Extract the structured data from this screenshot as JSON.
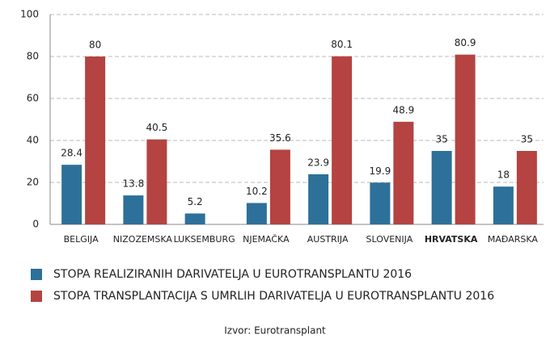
{
  "chart_data": {
    "type": "bar",
    "categories": [
      "BELGIJA",
      "NIZOZEMSKA",
      "LUKSEMBURG",
      "NJEMAČKA",
      "AUSTRIJA",
      "SLOVENIJA",
      "HRVATSKA",
      "MAĐARSKA"
    ],
    "series": [
      {
        "name": "STOPA REALIZIRANIH DARIVATELJA U EUROTRANSPLANTU 2016",
        "color": "#2d7099",
        "values": [
          28.4,
          13.8,
          5.2,
          10.2,
          23.9,
          19.9,
          35,
          18
        ]
      },
      {
        "name": "STOPA TRANSPLANTACIJA S UMRLIH DARIVATELJA U EUROTRANSPLANTU 2016",
        "color": "#b44341",
        "values": [
          80,
          40.5,
          null,
          35.6,
          80.1,
          48.9,
          80.9,
          35
        ]
      }
    ],
    "ylim": [
      0,
      100
    ],
    "yticks": [
      0,
      20,
      40,
      60,
      80,
      100
    ],
    "grid": true,
    "highlight_index": 6,
    "source": "Izvor: Eurotransplant"
  }
}
